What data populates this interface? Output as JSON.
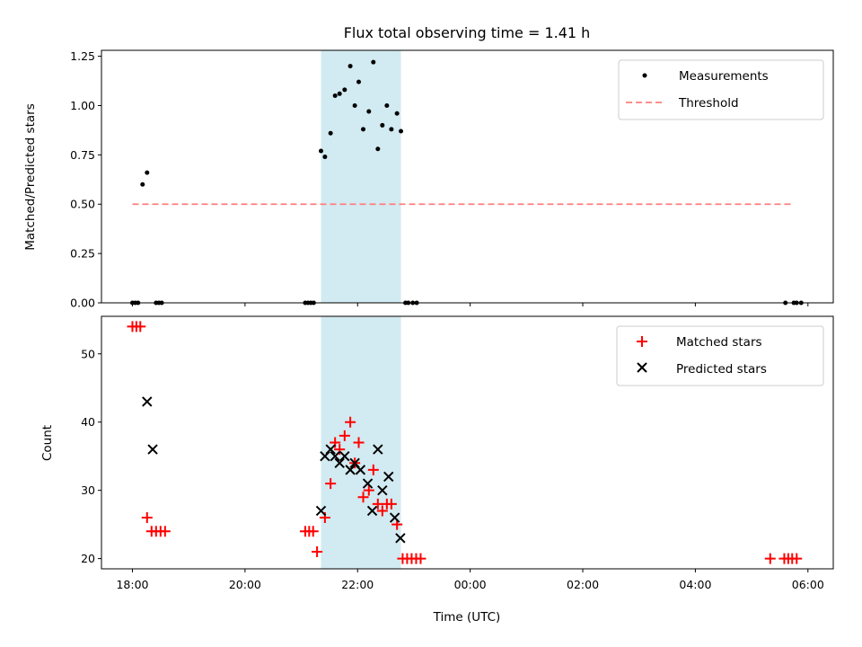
{
  "chart_data": {
    "title": "Flux total observing time = 1.41 h",
    "xlabel": "Time (UTC)",
    "x_unit": "hours since 18:00 UTC",
    "x_tick_values": [
      0,
      2,
      4,
      6,
      8,
      10,
      12
    ],
    "x_tick_labels": [
      "18:00",
      "20:00",
      "22:00",
      "00:00",
      "02:00",
      "04:00",
      "06:00"
    ],
    "xlim": [
      -0.55,
      12.45
    ],
    "shaded_region": {
      "x": [
        3.35,
        4.77
      ],
      "color": "#add8e6"
    },
    "panels": [
      {
        "type": "scatter",
        "ylabel": "Matched/Predicted stars",
        "ylim": [
          0,
          1.28
        ],
        "y_tick_values": [
          0,
          0.25,
          0.5,
          0.75,
          1.0,
          1.25
        ],
        "y_tick_labels": [
          "0.00",
          "0.25",
          "0.50",
          "0.75",
          "1.00",
          "1.25"
        ],
        "legend": "top-right",
        "series": [
          {
            "name": "Measurements",
            "marker": "dot",
            "color": "#000000",
            "x": [
              0.0,
              0.05,
              0.1,
              0.18,
              0.26,
              0.42,
              0.47,
              0.52,
              3.07,
              3.12,
              3.17,
              3.22,
              3.35,
              3.42,
              3.52,
              3.6,
              3.68,
              3.77,
              3.87,
              3.95,
              4.02,
              4.1,
              4.2,
              4.28,
              4.36,
              4.44,
              4.52,
              4.6,
              4.7,
              4.77,
              4.85,
              4.9,
              4.98,
              5.05,
              11.6,
              11.75,
              11.8,
              11.88
            ],
            "y": [
              0,
              0,
              0,
              0.6,
              0.66,
              0,
              0,
              0,
              0,
              0,
              0,
              0,
              0.77,
              0.74,
              0.86,
              1.05,
              1.06,
              1.08,
              1.2,
              1.0,
              1.12,
              0.88,
              0.97,
              1.22,
              0.78,
              0.9,
              1.0,
              0.88,
              0.96,
              0.87,
              0,
              0,
              0,
              0,
              0,
              0,
              0,
              0
            ]
          },
          {
            "name": "Threshold",
            "type": "line",
            "style": "dashed",
            "color": "#ff7f7f",
            "x": [
              0.0,
              11.75
            ],
            "y": [
              0.5,
              0.5
            ]
          }
        ]
      },
      {
        "type": "scatter",
        "ylabel": "Count",
        "ylim": [
          18.5,
          55.5
        ],
        "y_tick_values": [
          20,
          30,
          40,
          50
        ],
        "y_tick_labels": [
          "20",
          "30",
          "40",
          "50"
        ],
        "legend": "top-right",
        "series": [
          {
            "name": "Matched stars",
            "marker": "plus",
            "color": "#ff0000",
            "x": [
              0.0,
              0.07,
              0.14,
              0.26,
              0.34,
              0.42,
              0.5,
              0.58,
              3.07,
              3.14,
              3.21,
              3.28,
              3.42,
              3.52,
              3.6,
              3.68,
              3.77,
              3.87,
              3.95,
              4.02,
              4.1,
              4.2,
              4.28,
              4.36,
              4.44,
              4.52,
              4.6,
              4.7,
              4.8,
              4.88,
              4.96,
              5.04,
              5.12,
              11.33,
              11.58,
              11.65,
              11.72,
              11.8
            ],
            "y": [
              54,
              54,
              54,
              26,
              24,
              24,
              24,
              24,
              24,
              24,
              24,
              21,
              26,
              31,
              37,
              36,
              38,
              40,
              34,
              37,
              29,
              30,
              33,
              28,
              27,
              28,
              28,
              25,
              20,
              20,
              20,
              20,
              20,
              20,
              20,
              20,
              20,
              20
            ]
          },
          {
            "name": "Predicted stars",
            "marker": "x",
            "color": "#000000",
            "x": [
              0.26,
              0.36,
              3.35,
              3.42,
              3.52,
              3.6,
              3.68,
              3.77,
              3.87,
              3.95,
              4.05,
              4.18,
              4.26,
              4.36,
              4.44,
              4.55,
              4.66,
              4.76
            ],
            "y": [
              43,
              36,
              27,
              35,
              36,
              35,
              34,
              35,
              33,
              34,
              33,
              31,
              27,
              36,
              30,
              32,
              26,
              23
            ]
          }
        ]
      }
    ]
  }
}
